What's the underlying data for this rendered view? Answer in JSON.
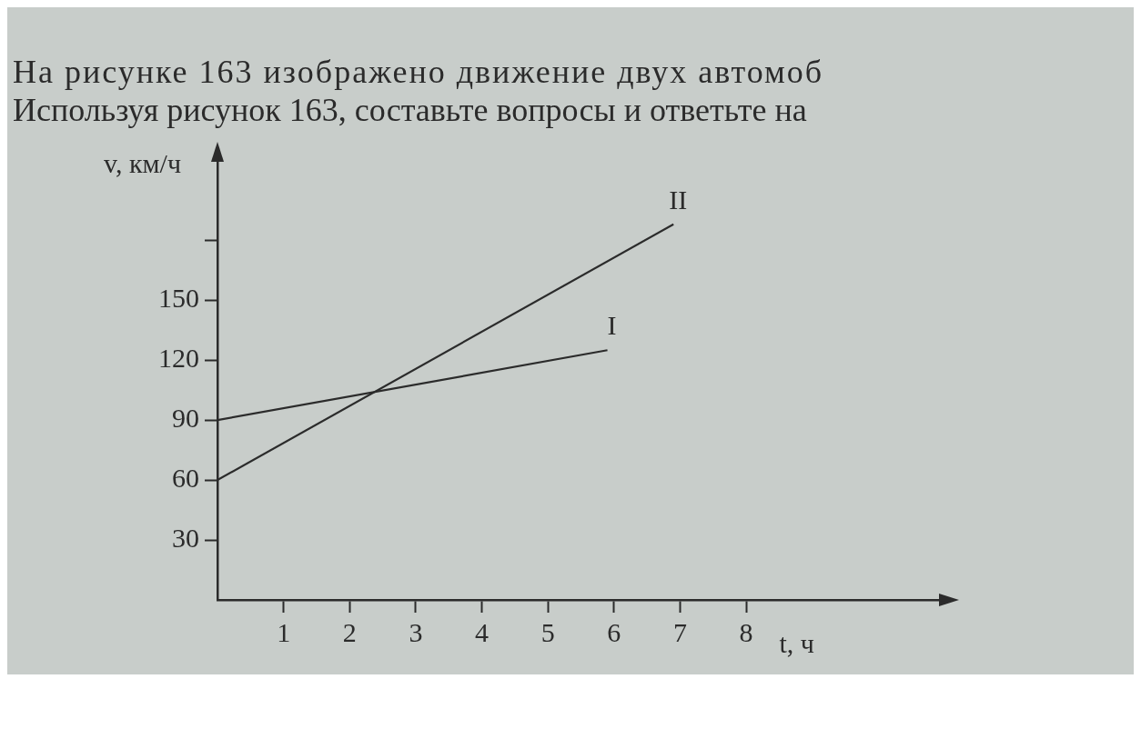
{
  "chart_data": {
    "type": "line",
    "title": "На рисунке 163 изображено движение двух автомоб",
    "subtitle": "Используя рисунок 163, составьте вопросы и ответьте на",
    "xlabel": "t, ч",
    "ylabel": "v, км/ч",
    "series": [
      {
        "name": "I",
        "color": "#2b2b2b",
        "x": [
          0,
          5.9
        ],
        "values": [
          90,
          125
        ]
      },
      {
        "name": "II",
        "color": "#2b2b2b",
        "x": [
          0,
          6.9
        ],
        "values": [
          60,
          188
        ]
      }
    ],
    "xlim": [
      0,
      11
    ],
    "xticks": [
      1,
      2,
      3,
      4,
      5,
      6,
      7,
      8
    ],
    "ylim": [
      0,
      222
    ],
    "yticks": [
      30,
      60,
      90,
      120,
      150,
      {
        "value": 180,
        "label": null
      }
    ],
    "grid": false,
    "legend": false,
    "marker": "none",
    "line_style": "solid"
  }
}
